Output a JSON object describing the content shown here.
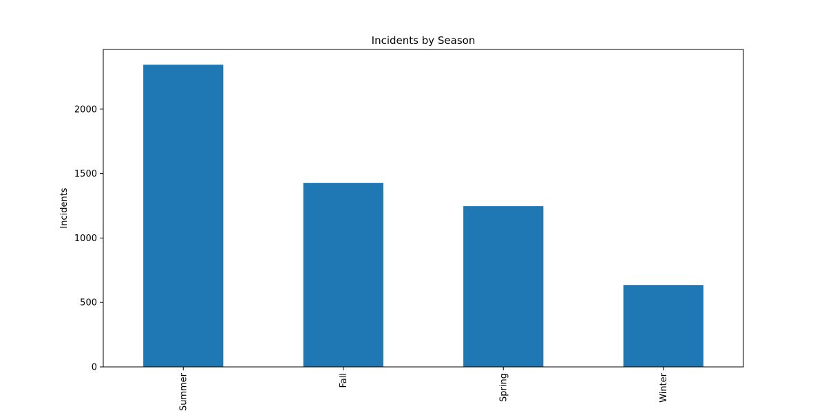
{
  "chart_data": {
    "type": "bar",
    "title": "Incidents by Season",
    "xlabel": "",
    "ylabel": "Incidents",
    "categories": [
      "Summer",
      "Fall",
      "Spring",
      "Winter"
    ],
    "values": [
      2345,
      1428,
      1247,
      634
    ],
    "ylim": [
      0,
      2463
    ],
    "yticks": [
      0,
      500,
      1000,
      1500,
      2000
    ],
    "xtick_rotation": 90,
    "grid": false,
    "legend": "none",
    "bar_color": "#1f77b4"
  }
}
